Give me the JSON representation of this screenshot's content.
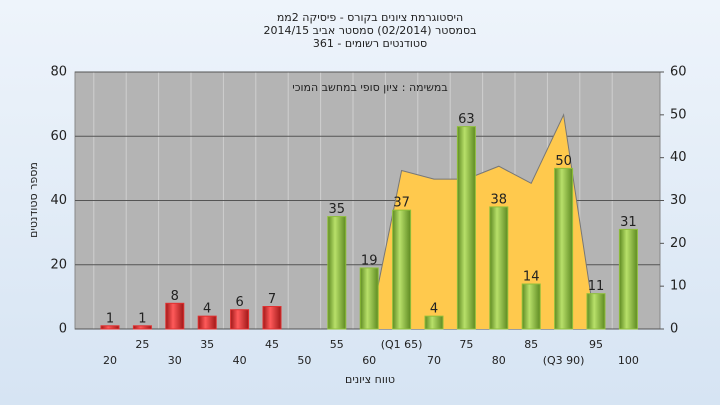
{
  "chart_data": {
    "type": "bar",
    "title": [
      "היסטוגרמת ציונים בקורס - פיסיקה 2ממ",
      "בסמסטר  (02/2014)  סמסטר אביב 2014/15",
      "סטודנטים רשומים - 361"
    ],
    "annotation": "במשימה : ציון סופי במחשב המוכי",
    "x_label": "טווח ציונים",
    "y_label": "מספר סטודנטים",
    "categories": [
      "20",
      "25",
      "30",
      "35",
      "40",
      "45",
      "50",
      "55",
      "60",
      "(Q1 65)",
      "70",
      "75",
      "80",
      "85",
      "(Q3 90)",
      "95",
      "100"
    ],
    "values": [
      1,
      1,
      8,
      4,
      6,
      7,
      null,
      35,
      19,
      37,
      4,
      63,
      38,
      14,
      50,
      11,
      31
    ],
    "colors": [
      "#e03030",
      "#e03030",
      "#e03030",
      "#e03030",
      "#e03030",
      "#e03030",
      "#e03030",
      "#8fbf3a",
      "#8fbf3a",
      "#8fbf3a",
      "#8fbf3a",
      "#8fbf3a",
      "#8fbf3a",
      "#8fbf3a",
      "#8fbf3a",
      "#8fbf3a",
      "#8fbf3a"
    ],
    "area": {
      "color": "#ffc94d",
      "axis": "y2",
      "values": [
        null,
        null,
        null,
        null,
        null,
        null,
        null,
        null,
        0,
        37,
        35,
        35,
        38,
        34,
        50,
        0,
        null
      ]
    },
    "ylim": [
      0,
      80
    ],
    "yticks": [
      0,
      20,
      40,
      60,
      80
    ],
    "y2lim": [
      0,
      60
    ],
    "y2ticks": [
      0,
      10,
      20,
      30,
      40,
      50,
      60
    ],
    "grid": true
  }
}
